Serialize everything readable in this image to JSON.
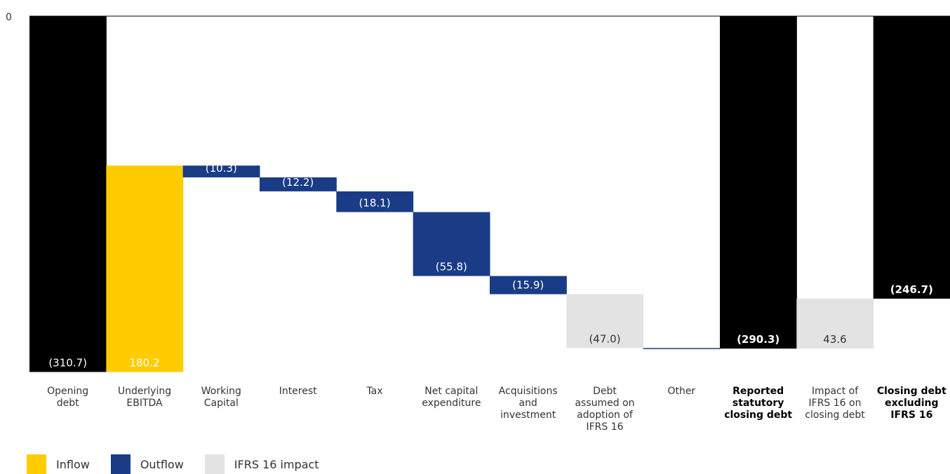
{
  "colors": {
    "total": "#000000",
    "inflow": "#FFCC00",
    "outflow": "#1A3C86",
    "ifrs": "#E3E3E3",
    "axis": "#000000"
  },
  "chart_data": {
    "type": "waterfall",
    "title": "",
    "xlabel": "",
    "ylabel": "",
    "ylim": [
      -320,
      0
    ],
    "y_ticks": [
      0
    ],
    "y_tick_labels": [
      "0"
    ],
    "grid": false,
    "legend_position": "bottom-left",
    "categories": [
      {
        "lines": [
          "Opening",
          "debt"
        ],
        "bold": false
      },
      {
        "lines": [
          "Underlying",
          "EBITDA"
        ],
        "bold": false
      },
      {
        "lines": [
          "Working",
          "Capital"
        ],
        "bold": false
      },
      {
        "lines": [
          "Interest"
        ],
        "bold": false
      },
      {
        "lines": [
          "Tax"
        ],
        "bold": false
      },
      {
        "lines": [
          "Net capital",
          "expenditure"
        ],
        "bold": false
      },
      {
        "lines": [
          "Acquisitions",
          "and",
          "investment"
        ],
        "bold": false
      },
      {
        "lines": [
          "Debt",
          "assumed on",
          "adoption of",
          "IFRS 16"
        ],
        "bold": false
      },
      {
        "lines": [
          "Other"
        ],
        "bold": false
      },
      {
        "lines": [
          "Reported",
          "statutory",
          "closing debt"
        ],
        "bold": true
      },
      {
        "lines": [
          "Impact of",
          "IFRS 16 on",
          "closing debt"
        ],
        "bold": false
      },
      {
        "lines": [
          "Closing debt",
          "excluding",
          "IFRS 16"
        ],
        "bold": true
      }
    ],
    "bars": [
      {
        "kind": "total",
        "start": 0,
        "end": -310.7,
        "label": "(310.7)",
        "label_pos": "bottom"
      },
      {
        "kind": "inflow",
        "start": -310.7,
        "end": -130.5,
        "label": "180.2",
        "label_pos": "bottom"
      },
      {
        "kind": "outflow",
        "start": -130.5,
        "end": -140.8,
        "label": "(10.3)",
        "label_pos": "bottom"
      },
      {
        "kind": "outflow",
        "start": -140.8,
        "end": -153.0,
        "label": "(12.2)",
        "label_pos": "bottom"
      },
      {
        "kind": "outflow",
        "start": -153.0,
        "end": -171.1,
        "label": "(18.1)",
        "label_pos": "bottom"
      },
      {
        "kind": "outflow",
        "start": -171.1,
        "end": -226.9,
        "label": "(55.8)",
        "label_pos": "bottom"
      },
      {
        "kind": "outflow",
        "start": -226.9,
        "end": -242.8,
        "label": "(15.9)",
        "label_pos": "bottom"
      },
      {
        "kind": "ifrs",
        "start": -242.8,
        "end": -289.8,
        "label": "(47.0)",
        "label_pos": "bottom"
      },
      {
        "kind": "outflow",
        "start": -289.8,
        "end": -290.3,
        "label": "",
        "label_pos": "bottom"
      },
      {
        "kind": "total",
        "start": 0,
        "end": -290.3,
        "label": "(290.3)",
        "label_pos": "bottom",
        "bold": true
      },
      {
        "kind": "ifrs",
        "start": -290.3,
        "end": -246.7,
        "label": "43.6",
        "label_pos": "bottom"
      },
      {
        "kind": "total",
        "start": 0,
        "end": -246.7,
        "label": "(246.7)",
        "label_pos": "bottom",
        "bold": true
      }
    ]
  },
  "legend": {
    "items": [
      {
        "key": "inflow",
        "label": "Inflow"
      },
      {
        "key": "outflow",
        "label": "Outflow"
      },
      {
        "key": "ifrs",
        "label": "IFRS 16 impact"
      }
    ]
  }
}
